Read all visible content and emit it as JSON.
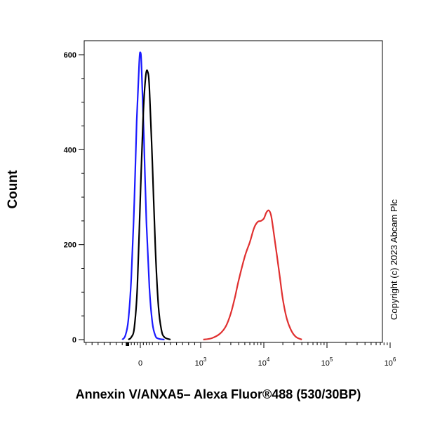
{
  "chart_data": {
    "type": "line",
    "title": "",
    "xlabel": "Annexin V/ANXA5– Alexa Fluor®488 (530/30BP)",
    "ylabel": "Count",
    "x_scale": "biexponential",
    "ylim": [
      0,
      620
    ],
    "y_ticks": [
      "0",
      "200",
      "400",
      "600"
    ],
    "x_ticks": [
      {
        "label": "0",
        "base": "0",
        "exp": ""
      },
      {
        "label": "10^3",
        "base": "10",
        "exp": "3"
      },
      {
        "label": "10^4",
        "base": "10",
        "exp": "4"
      },
      {
        "label": "10^5",
        "base": "10",
        "exp": "5"
      },
      {
        "label": "10^6",
        "base": "10",
        "exp": "6"
      }
    ],
    "grid": false,
    "legend": "none",
    "annotation": "Copyright (c) 2023 Abcam Plc",
    "series": [
      {
        "color": "#1a1aff",
        "x": [
          -300,
          -250,
          -200,
          -150,
          -100,
          -60,
          -20,
          0,
          20,
          60,
          100,
          150,
          200,
          250,
          300,
          400
        ],
        "y": [
          0,
          8,
          40,
          130,
          290,
          460,
          580,
          605,
          575,
          420,
          250,
          110,
          35,
          8,
          2,
          0
        ]
      },
      {
        "color": "#000000",
        "x": [
          -200,
          -150,
          -100,
          -50,
          0,
          50,
          90,
          120,
          150,
          200,
          250,
          300,
          350,
          400,
          500
        ],
        "y": [
          0,
          5,
          25,
          110,
          300,
          480,
          555,
          565,
          530,
          370,
          190,
          70,
          20,
          5,
          0
        ]
      },
      {
        "color": "#e03030",
        "x": [
          1100,
          1500,
          2000,
          2500,
          3000,
          3500,
          4000,
          5000,
          6000,
          7000,
          8000,
          9000,
          10000,
          11000,
          12000,
          13000,
          14000,
          16000,
          18000,
          20000,
          23000,
          27000,
          32000,
          40000
        ],
        "y": [
          0,
          3,
          12,
          28,
          55,
          90,
          125,
          175,
          205,
          235,
          248,
          250,
          255,
          268,
          272,
          262,
          235,
          180,
          130,
          85,
          45,
          20,
          6,
          0
        ]
      }
    ]
  }
}
